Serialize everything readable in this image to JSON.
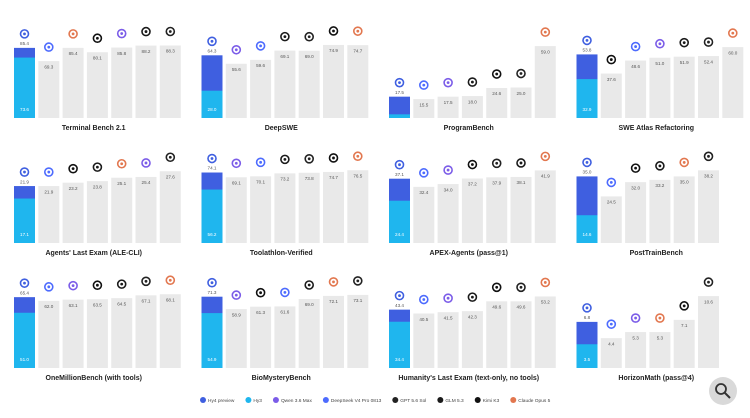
{
  "chart_data": [
    {
      "type": "bar",
      "title": "Terminal Bench 2.1",
      "categories": [
        "Hy4 preview",
        "DeepSeek V4 Pro 0813",
        "Claude Opus 5",
        "Kimi K3",
        "Qwen 3.6 Max",
        "GLM 5.3",
        "GPT 5.6 Sol"
      ],
      "values": [
        85.4,
        69.3,
        85.4,
        80.1,
        85.8,
        88.2,
        88.3
      ],
      "value_labels": [
        "85.4",
        "69.3",
        "85.4",
        "80.1",
        "85.8",
        "88.2",
        "88.3"
      ],
      "inner_values": [
        73.6,
        null,
        null,
        null,
        null,
        null,
        null
      ],
      "inner_value_labels": [
        "73.6",
        null,
        null,
        null,
        null,
        null,
        null
      ],
      "ylim": [
        0,
        95
      ]
    },
    {
      "type": "bar",
      "title": "DeepSWE",
      "categories": [
        "Hy4 preview",
        "Qwen 3.6 Max",
        "DeepSeek V4 Pro 0813",
        "GLM 5.3",
        "GPT 5.6 Sol",
        "Kimi K3",
        "Claude Opus 5"
      ],
      "values": [
        64.3,
        55.6,
        59.6,
        69.1,
        69.0,
        74.9,
        74.7
      ],
      "value_labels": [
        "64.3",
        "55.6",
        "59.6",
        "69.1",
        "69.0",
        "74.9",
        "74.7"
      ],
      "inner_values": [
        28.0,
        null,
        null,
        null,
        null,
        null,
        null
      ],
      "inner_value_labels": [
        "28.0",
        null,
        null,
        null,
        null,
        null,
        null
      ],
      "ylim": [
        0,
        80
      ]
    },
    {
      "type": "bar",
      "title": "ProgramBench",
      "categories": [
        "Hy4 preview",
        "DeepSeek V4 Pro 0813",
        "Qwen 3.6 Max",
        "GLM 5.3",
        "Kimi K3",
        "GPT 5.6 Sol",
        "Claude Opus 5"
      ],
      "values": [
        17.5,
        15.5,
        17.5,
        18.0,
        24.6,
        25.0,
        59.0
      ],
      "value_labels": [
        "17.5",
        "15.5",
        "17.5",
        "18.0",
        "24.6",
        "25.0",
        "59.0"
      ],
      "inner_values": [
        3.0,
        null,
        null,
        null,
        null,
        null,
        null
      ],
      "inner_value_labels": [
        "3.0",
        null,
        null,
        null,
        null,
        null,
        null
      ],
      "ylim": [
        0,
        64
      ]
    },
    {
      "type": "bar",
      "title": "SWE Atlas Refactoring",
      "categories": [
        "Hy4 preview",
        "Kimi K3",
        "DeepSeek V4 Pro 0813",
        "Qwen 3.6 Max",
        "GLM 5.3",
        "GPT 5.6 Sol",
        "Claude Opus 5"
      ],
      "values": [
        53.8,
        37.6,
        48.6,
        51.0,
        51.9,
        52.4,
        60.0
      ],
      "value_labels": [
        "53.8",
        "37.6",
        "48.6",
        "51.0",
        "51.9",
        "52.4",
        "60.0"
      ],
      "inner_values": [
        32.9,
        null,
        null,
        null,
        null,
        null,
        null
      ],
      "inner_value_labels": [
        "32.9",
        null,
        null,
        null,
        null,
        null,
        null
      ],
      "ylim": [
        0,
        66
      ]
    },
    {
      "type": "bar",
      "title": "Agents' Last Exam (ALE-CLI)",
      "categories": [
        "Hy4 preview",
        "DeepSeek V4 Pro 0813",
        "Kimi K3",
        "GLM 5.3",
        "Claude Opus 5",
        "Qwen 3.6 Max",
        "GPT 5.6 Sol"
      ],
      "values": [
        21.9,
        21.9,
        23.2,
        23.8,
        25.1,
        25.4,
        27.6
      ],
      "value_labels": [
        "21.9",
        "21.9",
        "23.2",
        "23.8",
        "25.1",
        "25.4",
        "27.6"
      ],
      "inner_values": [
        17.1,
        null,
        null,
        null,
        null,
        null,
        null
      ],
      "inner_value_labels": [
        "17.1",
        null,
        null,
        null,
        null,
        null,
        null
      ],
      "ylim": [
        0,
        30
      ]
    },
    {
      "type": "bar",
      "title": "Toolathlon-Verified",
      "categories": [
        "Hy4 preview",
        "Qwen 3.6 Max",
        "DeepSeek V4 Pro 0813",
        "GLM 5.3",
        "GPT 5.6 Sol",
        "Kimi K3",
        "Claude Opus 5"
      ],
      "values": [
        74.1,
        69.1,
        70.1,
        73.2,
        73.8,
        74.7,
        76.5
      ],
      "value_labels": [
        "74.1",
        "69.1",
        "70.1",
        "73.2",
        "73.8",
        "74.7",
        "76.5"
      ],
      "inner_values": [
        56.2,
        null,
        null,
        null,
        null,
        null,
        null
      ],
      "inner_value_labels": [
        "56.2",
        null,
        null,
        null,
        null,
        null,
        null
      ],
      "ylim": [
        0,
        82
      ]
    },
    {
      "type": "bar",
      "title": "APEX-Agents (pass@1)",
      "categories": [
        "Hy4 preview",
        "DeepSeek V4 Pro 0813",
        "Qwen 3.6 Max",
        "Kimi K3",
        "GPT 5.6 Sol",
        "GLM 5.3",
        "Claude Opus 5"
      ],
      "values": [
        37.1,
        32.4,
        34.0,
        37.2,
        37.9,
        38.1,
        41.9
      ],
      "value_labels": [
        "37.1",
        "32.4",
        "34.0",
        "37.2",
        "37.9",
        "38.1",
        "41.9"
      ],
      "inner_values": [
        24.4,
        null,
        null,
        null,
        null,
        null,
        null
      ],
      "inner_value_labels": [
        "24.4",
        null,
        null,
        null,
        null,
        null,
        null
      ],
      "ylim": [
        0,
        45
      ]
    },
    {
      "type": "bar",
      "title": "PostTrainBench",
      "categories": [
        "Hy4 preview",
        "DeepSeek V4 Pro 0813",
        "Kimi K3",
        "GLM 5.3",
        "Claude Opus 5",
        "GPT 5.6 Sol"
      ],
      "values": [
        35.0,
        24.5,
        32.0,
        33.2,
        35.0,
        38.2
      ],
      "value_labels": [
        "35.0",
        "24.5",
        "32.0",
        "33.2",
        "35.0",
        "38.2"
      ],
      "inner_values": [
        14.6,
        null,
        null,
        null,
        null,
        null
      ],
      "inner_value_labels": [
        "14.6",
        null,
        null,
        null,
        null,
        null
      ],
      "ylim": [
        0,
        41
      ]
    },
    {
      "type": "bar",
      "title": "OneMillionBench (with tools)",
      "categories": [
        "Hy4 preview",
        "DeepSeek V4 Pro 0813",
        "Qwen 3.6 Max",
        "Kimi K3",
        "GLM 5.3",
        "GPT 5.6 Sol",
        "Claude Opus 5"
      ],
      "values": [
        65.4,
        62.0,
        63.1,
        63.5,
        64.5,
        67.1,
        68.1
      ],
      "value_labels": [
        "65.4",
        "62.0",
        "63.1",
        "63.5",
        "64.5",
        "67.1",
        "68.1"
      ],
      "inner_values": [
        51.0,
        null,
        null,
        null,
        null,
        null,
        null
      ],
      "inner_value_labels": [
        "51.0",
        null,
        null,
        null,
        null,
        null,
        null
      ],
      "ylim": [
        0,
        72
      ]
    },
    {
      "type": "bar",
      "title": "BioMysteryBench",
      "categories": [
        "Hy4 preview",
        "Qwen 3.6 Max",
        "Kimi K3",
        "DeepSeek V4 Pro 0813",
        "GLM 5.3",
        "Claude Opus 5",
        "GPT 5.6 Sol"
      ],
      "values": [
        71.3,
        58.9,
        61.3,
        61.6,
        69.0,
        72.1,
        73.1
      ],
      "value_labels": [
        "71.3",
        "58.9",
        "61.3",
        "61.6",
        "69.0",
        "72.1",
        "73.1"
      ],
      "inner_values": [
        54.9,
        null,
        null,
        null,
        null,
        null,
        null
      ],
      "inner_value_labels": [
        "54.9",
        null,
        null,
        null,
        null,
        null,
        null
      ],
      "ylim": [
        0,
        78
      ]
    },
    {
      "type": "bar",
      "title": "Humanity's Last Exam (text-only, no tools)",
      "categories": [
        "Hy4 preview",
        "DeepSeek V4 Pro 0813",
        "Qwen 3.6 Max",
        "GLM 5.3",
        "Kimi K3",
        "GPT 5.6 Sol",
        "Claude Opus 5"
      ],
      "values": [
        43.4,
        40.5,
        41.5,
        42.3,
        49.6,
        49.6,
        53.2
      ],
      "value_labels": [
        "43.4",
        "40.5",
        "41.5",
        "42.3",
        "49.6",
        "49.6",
        "53.2"
      ],
      "inner_values": [
        34.4,
        null,
        null,
        null,
        null,
        null,
        null
      ],
      "inner_value_labels": [
        "34.4",
        null,
        null,
        null,
        null,
        null,
        null
      ],
      "ylim": [
        0,
        58
      ]
    },
    {
      "type": "bar",
      "title": "HorizonMath (pass@4)",
      "categories": [
        "Hy4 preview",
        "DeepSeek V4 Pro 0813",
        "Qwen 3.6 Max",
        "Claude Opus 5",
        "Kimi K3",
        "GPT 5.6 Sol"
      ],
      "values": [
        6.8,
        4.4,
        5.3,
        5.3,
        7.1,
        10.6
      ],
      "value_labels": [
        "6.8",
        "4.4",
        "5.3",
        "5.3",
        "7.1",
        "10.6"
      ],
      "inner_values": [
        3.5,
        null,
        null,
        null,
        null,
        null
      ],
      "inner_value_labels": [
        "3.5",
        null,
        null,
        null,
        null,
        null
      ],
      "ylim": [
        0,
        11.5
      ]
    }
  ],
  "legend": [
    {
      "name": "Hy4 preview",
      "color": "#3f5fe0"
    },
    {
      "name": "Hy3",
      "color": "#1fb6ee"
    },
    {
      "name": "Qwen 3.6 Max",
      "color": "#7b5ce8"
    },
    {
      "name": "DeepSeek V4 Pro 0813",
      "color": "#4d6bfe"
    },
    {
      "name": "GPT 5.6 Sol",
      "color": "#222222"
    },
    {
      "name": "GLM 5.3",
      "color": "#1a1a1a"
    },
    {
      "name": "Kimi K3",
      "color": "#111111"
    },
    {
      "name": "Claude Opus 5",
      "color": "#e2774f"
    }
  ],
  "bar_color": "#e9e9e9"
}
